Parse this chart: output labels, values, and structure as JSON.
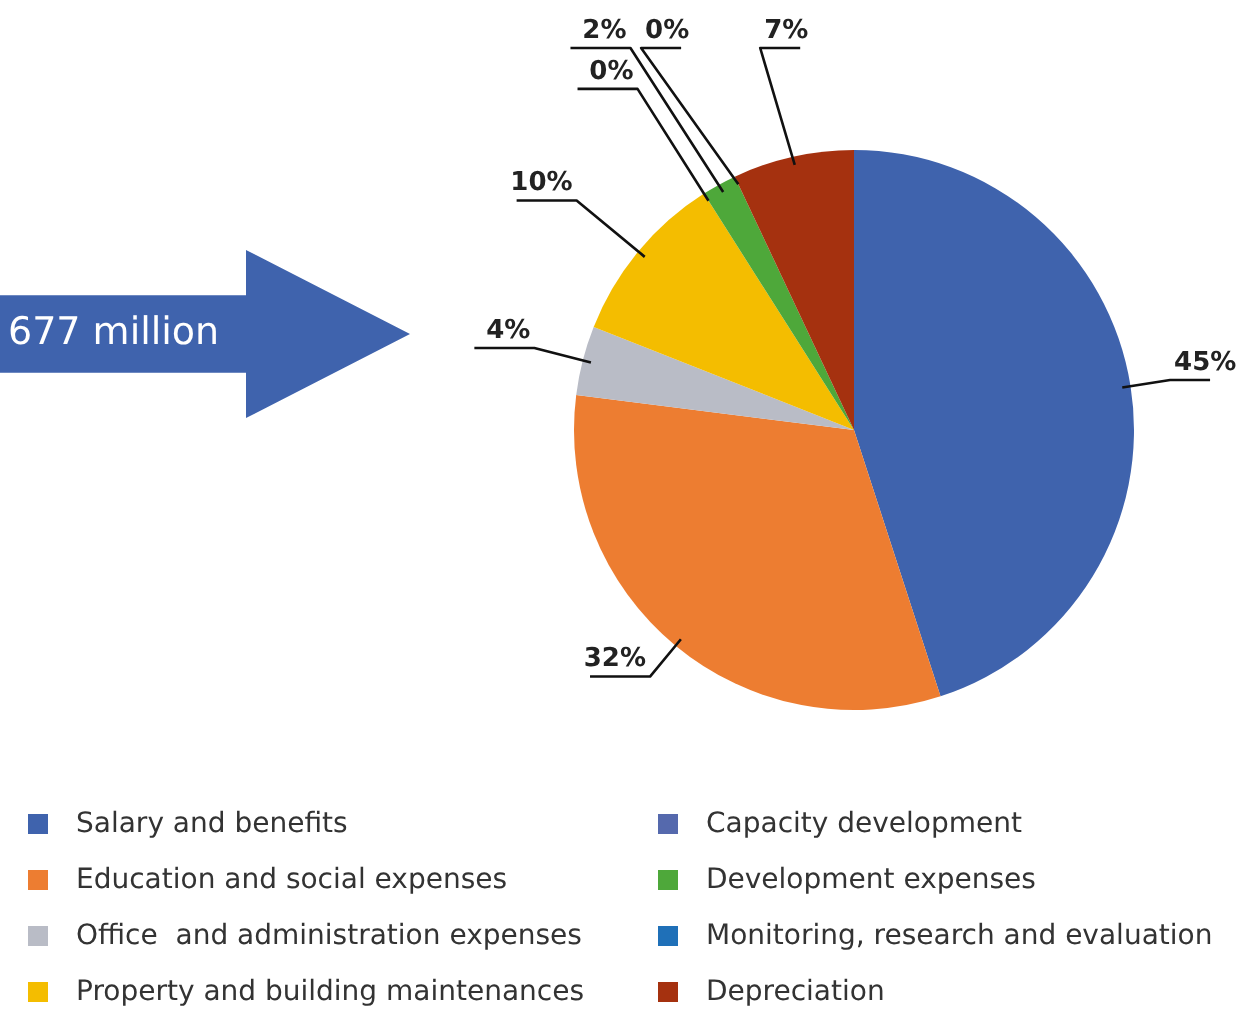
{
  "chart_data": {
    "type": "pie",
    "categories": [
      "Salary and benefits",
      "Education and social expenses",
      "Office  and administration expenses",
      "Property and building maintenances",
      "Capacity development",
      "Development expenses",
      "Monitoring, research and evaluation",
      "Depreciation"
    ],
    "values": [
      45,
      32,
      4,
      10,
      0,
      2,
      0,
      7
    ],
    "colors": [
      "#3f63ad",
      "#ed7d31",
      "#b9bcc6",
      "#f4bd00",
      "#5569ad",
      "#4ea83a",
      "#1f70b8",
      "#a5310f"
    ],
    "value_labels": [
      "45%",
      "32%",
      "4%",
      "10%",
      "0%",
      "2%",
      "0%",
      "7%"
    ],
    "annotations": [
      "677 million"
    ],
    "legend": "bottom"
  }
}
